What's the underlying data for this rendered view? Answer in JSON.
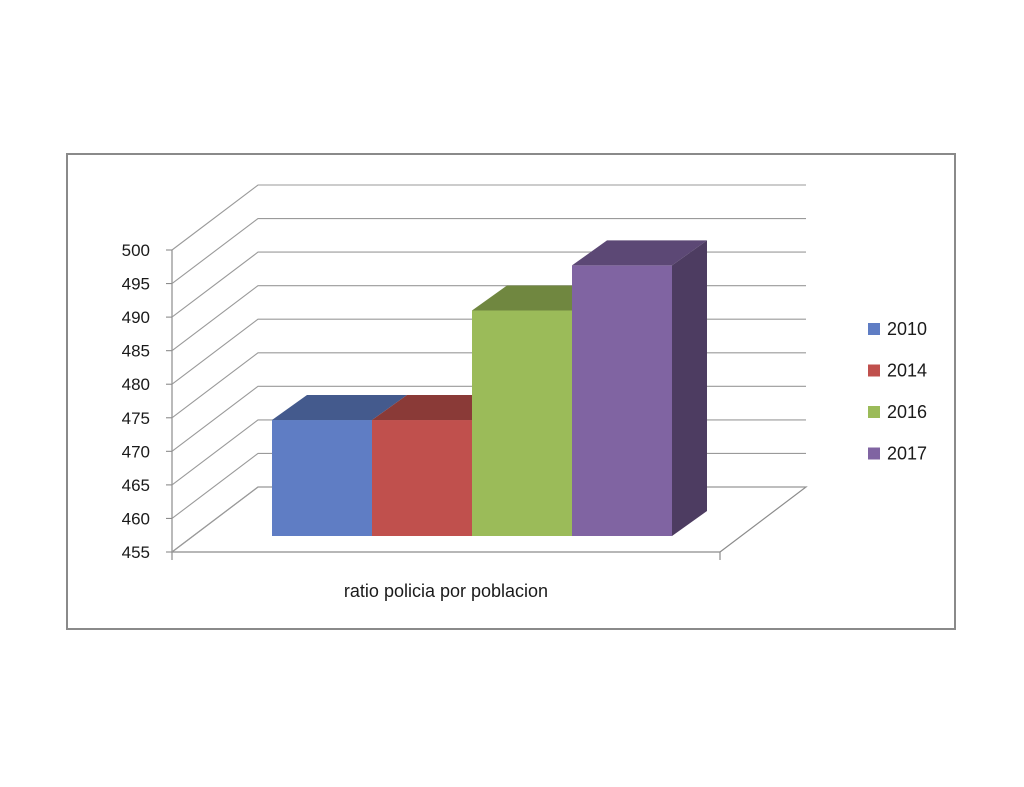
{
  "chart_data": {
    "type": "bar",
    "style": "3d-clustered-column",
    "categories": [
      "ratio policia por poblacion"
    ],
    "series": [
      {
        "name": "2010",
        "values": [
          473
        ],
        "color": "#5f7dc4"
      },
      {
        "name": "2014",
        "values": [
          473
        ],
        "color": "#c0504d"
      },
      {
        "name": "2016",
        "values": [
          490
        ],
        "color": "#9bbb59"
      },
      {
        "name": "2017",
        "values": [
          497
        ],
        "color": "#8064a2"
      }
    ],
    "title": "",
    "xlabel": "ratio policia por poblacion",
    "ylabel": "",
    "ylim": [
      455,
      500
    ],
    "yticks": [
      "455",
      "460",
      "465",
      "470",
      "475",
      "480",
      "485",
      "490",
      "495",
      "500"
    ],
    "grid": true,
    "legend": "right"
  }
}
